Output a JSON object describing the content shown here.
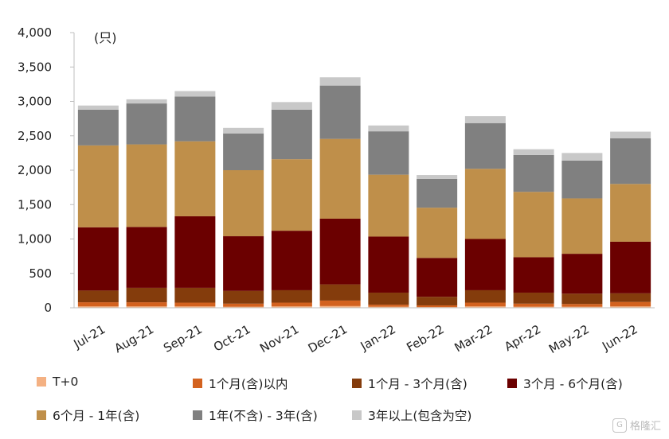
{
  "chart_data": {
    "type": "bar",
    "stacked": true,
    "unit_label": "(只)",
    "title": "",
    "xlabel": "",
    "ylabel": "",
    "ylim": [
      0,
      4000
    ],
    "yticks": [
      0,
      500,
      1000,
      1500,
      2000,
      2500,
      3000,
      3500,
      4000
    ],
    "ytick_labels": [
      "0",
      "500",
      "1,000",
      "1,500",
      "2,000",
      "2,500",
      "3,000",
      "3,500",
      "4,000"
    ],
    "grid": false,
    "legend_position": "bottom",
    "categories": [
      "Jul-21",
      "Aug-21",
      "Sep-21",
      "Oct-21",
      "Nov-21",
      "Dec-21",
      "Jan-22",
      "Feb-22",
      "Mar-22",
      "Apr-22",
      "May-22",
      "Jun-22"
    ],
    "series": [
      {
        "name": "T+0",
        "color": "#f4b183",
        "values": [
          20,
          20,
          20,
          15,
          20,
          25,
          15,
          10,
          20,
          15,
          15,
          20
        ]
      },
      {
        "name": "1个月(含)以内",
        "color": "#d3621f",
        "values": [
          60,
          60,
          55,
          45,
          55,
          80,
          30,
          25,
          55,
          45,
          40,
          65
        ]
      },
      {
        "name": "1个月 - 3个月(含)",
        "color": "#843c0c",
        "values": [
          170,
          210,
          215,
          185,
          180,
          235,
          175,
          125,
          180,
          160,
          150,
          125
        ]
      },
      {
        "name": "3个月 - 6个月(含)",
        "color": "#6b0000",
        "values": [
          920,
          885,
          1040,
          795,
          865,
          955,
          815,
          565,
          745,
          515,
          580,
          750
        ]
      },
      {
        "name": "6个月 - 1年(含)",
        "color": "#bf8f4a",
        "values": [
          1190,
          1200,
          1090,
          960,
          1040,
          1160,
          900,
          730,
          1020,
          950,
          805,
          840
        ]
      },
      {
        "name": "1年(不含) - 3年(含)",
        "color": "#808080",
        "values": [
          520,
          595,
          650,
          535,
          720,
          775,
          630,
          420,
          665,
          535,
          550,
          665
        ]
      },
      {
        "name": "3年以上(包含为空)",
        "color": "#c8c8c8",
        "values": [
          60,
          60,
          80,
          80,
          110,
          120,
          85,
          55,
          100,
          85,
          110,
          95
        ]
      }
    ]
  },
  "watermark": {
    "icon_text": "G",
    "text": "格隆汇"
  }
}
